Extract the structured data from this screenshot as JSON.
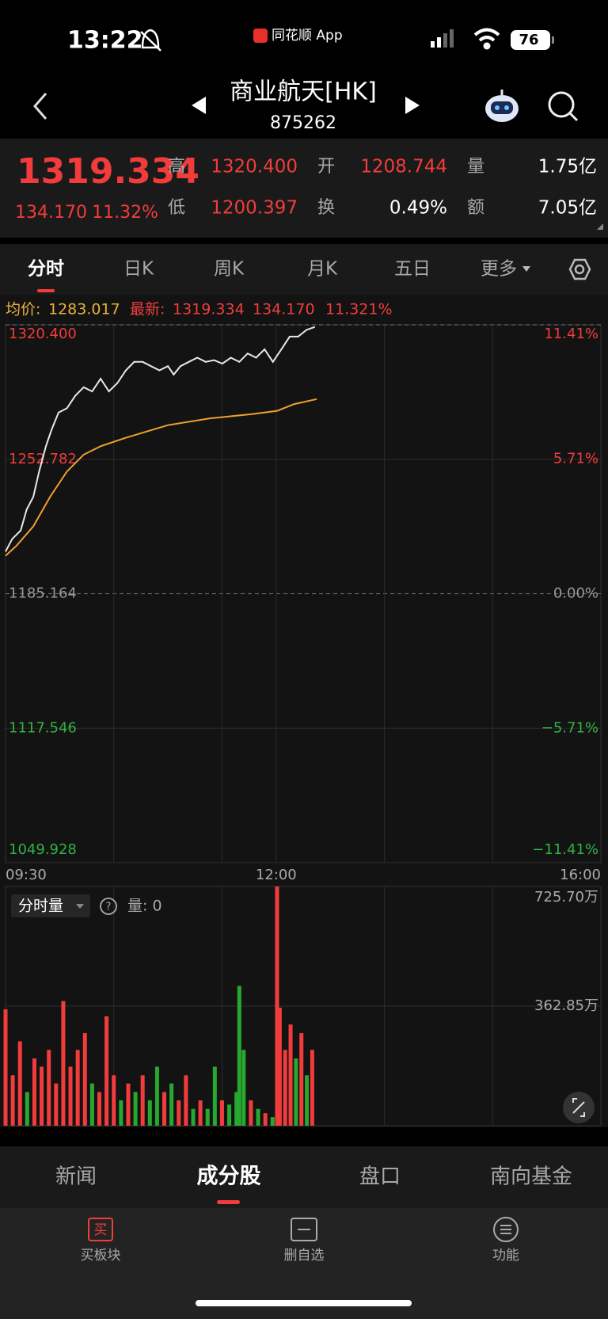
{
  "status_bar": {
    "time": "13:22",
    "app": "同花顺 App",
    "battery": "76"
  },
  "header": {
    "title": "商业航天[HK]",
    "code": "875262"
  },
  "quote": {
    "price": "1319.334",
    "change": "134.170",
    "change_pct": "11.32%",
    "high_label": "高",
    "high": "1320.400",
    "low_label": "低",
    "low": "1200.397",
    "open_label": "开",
    "open": "1208.744",
    "turnover_label": "换",
    "turnover": "0.49%",
    "volume_label": "量",
    "volume": "1.75亿",
    "amount_label": "额",
    "amount": "7.05亿"
  },
  "tabs": [
    "分时",
    "日K",
    "周K",
    "月K",
    "五日",
    "更多"
  ],
  "info": {
    "avg_label": "均价:",
    "avg": "1283.017",
    "latest_label": "最新:",
    "latest": "1319.334",
    "change": "134.170",
    "change_pct": "11.321%"
  },
  "chart_data": [
    {
      "type": "line",
      "xlim": [
        0,
        330
      ],
      "xticks": [
        {
          "value": 0,
          "label": "09:30"
        },
        {
          "value": 60,
          "label": null
        },
        {
          "value": 120,
          "label": null
        },
        {
          "value": 150,
          "label": "12:00"
        },
        {
          "value": 210,
          "label": null
        },
        {
          "value": 270,
          "label": null
        },
        {
          "value": 330,
          "label": "16:00"
        }
      ],
      "ylim": [
        1049.928,
        1320.4
      ],
      "yticks": [
        {
          "value": 1320.4,
          "label": "1320.400"
        },
        {
          "value": 1252.782,
          "label": "1252.782"
        },
        {
          "value": 1185.164,
          "label": "1185.164"
        },
        {
          "value": 1117.546,
          "label": "1117.546"
        },
        {
          "value": 1049.928,
          "label": "1049.928"
        }
      ],
      "y2lim": [
        -11.41,
        11.41
      ],
      "y2ticks": [
        {
          "value": 11.41,
          "label": "11.41%"
        },
        {
          "value": 5.71,
          "label": "5.71%"
        },
        {
          "value": 0,
          "label": "0.00%"
        },
        {
          "value": -5.71,
          "label": "−5.71%"
        },
        {
          "value": -11.41,
          "label": "−11.41%"
        }
      ],
      "series": [
        {
          "color": "#e8e8e8",
          "x": [
            0,
            3.7,
            8.4,
            11.7,
            15.4,
            18.6,
            22.4,
            25.6,
            29.4,
            34.0,
            38.7,
            43.3,
            48.0,
            52.7,
            57.3,
            62.0,
            66.7,
            71.3,
            76.0,
            80.6,
            85.3,
            90.0,
            93.2,
            97.0,
            101.6,
            106.3,
            110.9,
            115.6,
            120.2,
            124.9,
            129.6,
            134.2,
            138.9,
            143.6,
            148.2,
            152.9,
            157.5,
            162.2,
            166.9,
            171.5
          ],
          "values": [
            1206.36,
            1212.72,
            1216.96,
            1227.55,
            1233.91,
            1246.63,
            1259.35,
            1267.83,
            1276.3,
            1278.42,
            1284.78,
            1289.02,
            1286.9,
            1293.26,
            1286.9,
            1291.14,
            1297.5,
            1301.74,
            1301.74,
            1299.62,
            1297.5,
            1299.62,
            1295.38,
            1299.62,
            1301.74,
            1303.86,
            1301.74,
            1302.58,
            1300.89,
            1303.86,
            1301.74,
            1305.98,
            1303.86,
            1308.1,
            1301.74,
            1308.1,
            1314.45,
            1314.45,
            1317.84,
            1319.334
          ]
        },
        {
          "color": "#f0a030",
          "x": [
            0,
            6.1,
            15.4,
            24.7,
            34.0,
            43.3,
            52.7,
            66.7,
            90.0,
            113.3,
            136.6,
            150.6,
            160.0,
            172.5
          ],
          "values": [
            1204.24,
            1209.33,
            1219.08,
            1233.91,
            1246.63,
            1255.11,
            1259.35,
            1263.59,
            1269.94,
            1273.34,
            1275.46,
            1277.15,
            1280.54,
            1283.017
          ]
        }
      ]
    },
    {
      "type": "bar",
      "xlim": [
        0,
        330
      ],
      "ylim": [
        0,
        725.7
      ],
      "yticks": [
        {
          "value": 725.7,
          "label": "725.70万"
        },
        {
          "value": 362.85,
          "label": "362.85万"
        }
      ],
      "x": [
        0,
        4,
        8,
        12,
        16,
        20,
        24,
        28,
        32,
        36,
        40,
        44,
        48,
        52,
        56,
        60,
        64,
        68,
        72,
        76,
        80,
        84,
        88,
        92,
        96,
        100,
        104,
        108,
        112,
        116,
        120,
        124,
        128,
        129.6,
        132,
        136,
        140,
        144,
        148,
        150.5,
        152,
        155,
        158,
        161,
        164,
        167,
        170
      ],
      "values": [
        353,
        153,
        256,
        102,
        204,
        179,
        230,
        128,
        378,
        179,
        230,
        281,
        128,
        102,
        332,
        153,
        77,
        128,
        102,
        153,
        77,
        179,
        102,
        128,
        77,
        153,
        51,
        77,
        51,
        179,
        77,
        64,
        102,
        424,
        230,
        77,
        51,
        38,
        26,
        725.7,
        358,
        230,
        307,
        204,
        281,
        153,
        230
      ],
      "colors": [
        "#f23c3c",
        "#f23c3c",
        "#f23c3c",
        "#27a82f",
        "#f23c3c",
        "#f23c3c",
        "#f23c3c",
        "#f23c3c",
        "#f23c3c",
        "#f23c3c",
        "#f23c3c",
        "#f23c3c",
        "#27a82f",
        "#f23c3c",
        "#f23c3c",
        "#f23c3c",
        "#27a82f",
        "#f23c3c",
        "#27a82f",
        "#f23c3c",
        "#27a82f",
        "#27a82f",
        "#f23c3c",
        "#27a82f",
        "#f23c3c",
        "#f23c3c",
        "#27a82f",
        "#f23c3c",
        "#27a82f",
        "#27a82f",
        "#f23c3c",
        "#27a82f",
        "#27a82f",
        "#27a82f",
        "#27a82f",
        "#f23c3c",
        "#27a82f",
        "#f23c3c",
        "#27a82f",
        "#f23c3c",
        "#f23c3c",
        "#f23c3c",
        "#f23c3c",
        "#27a82f",
        "#f23c3c",
        "#27a82f",
        "#f23c3c"
      ]
    }
  ],
  "volume_header": {
    "selector": "分时量",
    "volume": "量: 0"
  },
  "bottom_tabs": [
    "新闻",
    "成分股",
    "盘口",
    "南向基金"
  ],
  "toolbar": {
    "buy_icon": "买",
    "buy": "买板块",
    "remove": "删自选",
    "functions": "功能"
  }
}
